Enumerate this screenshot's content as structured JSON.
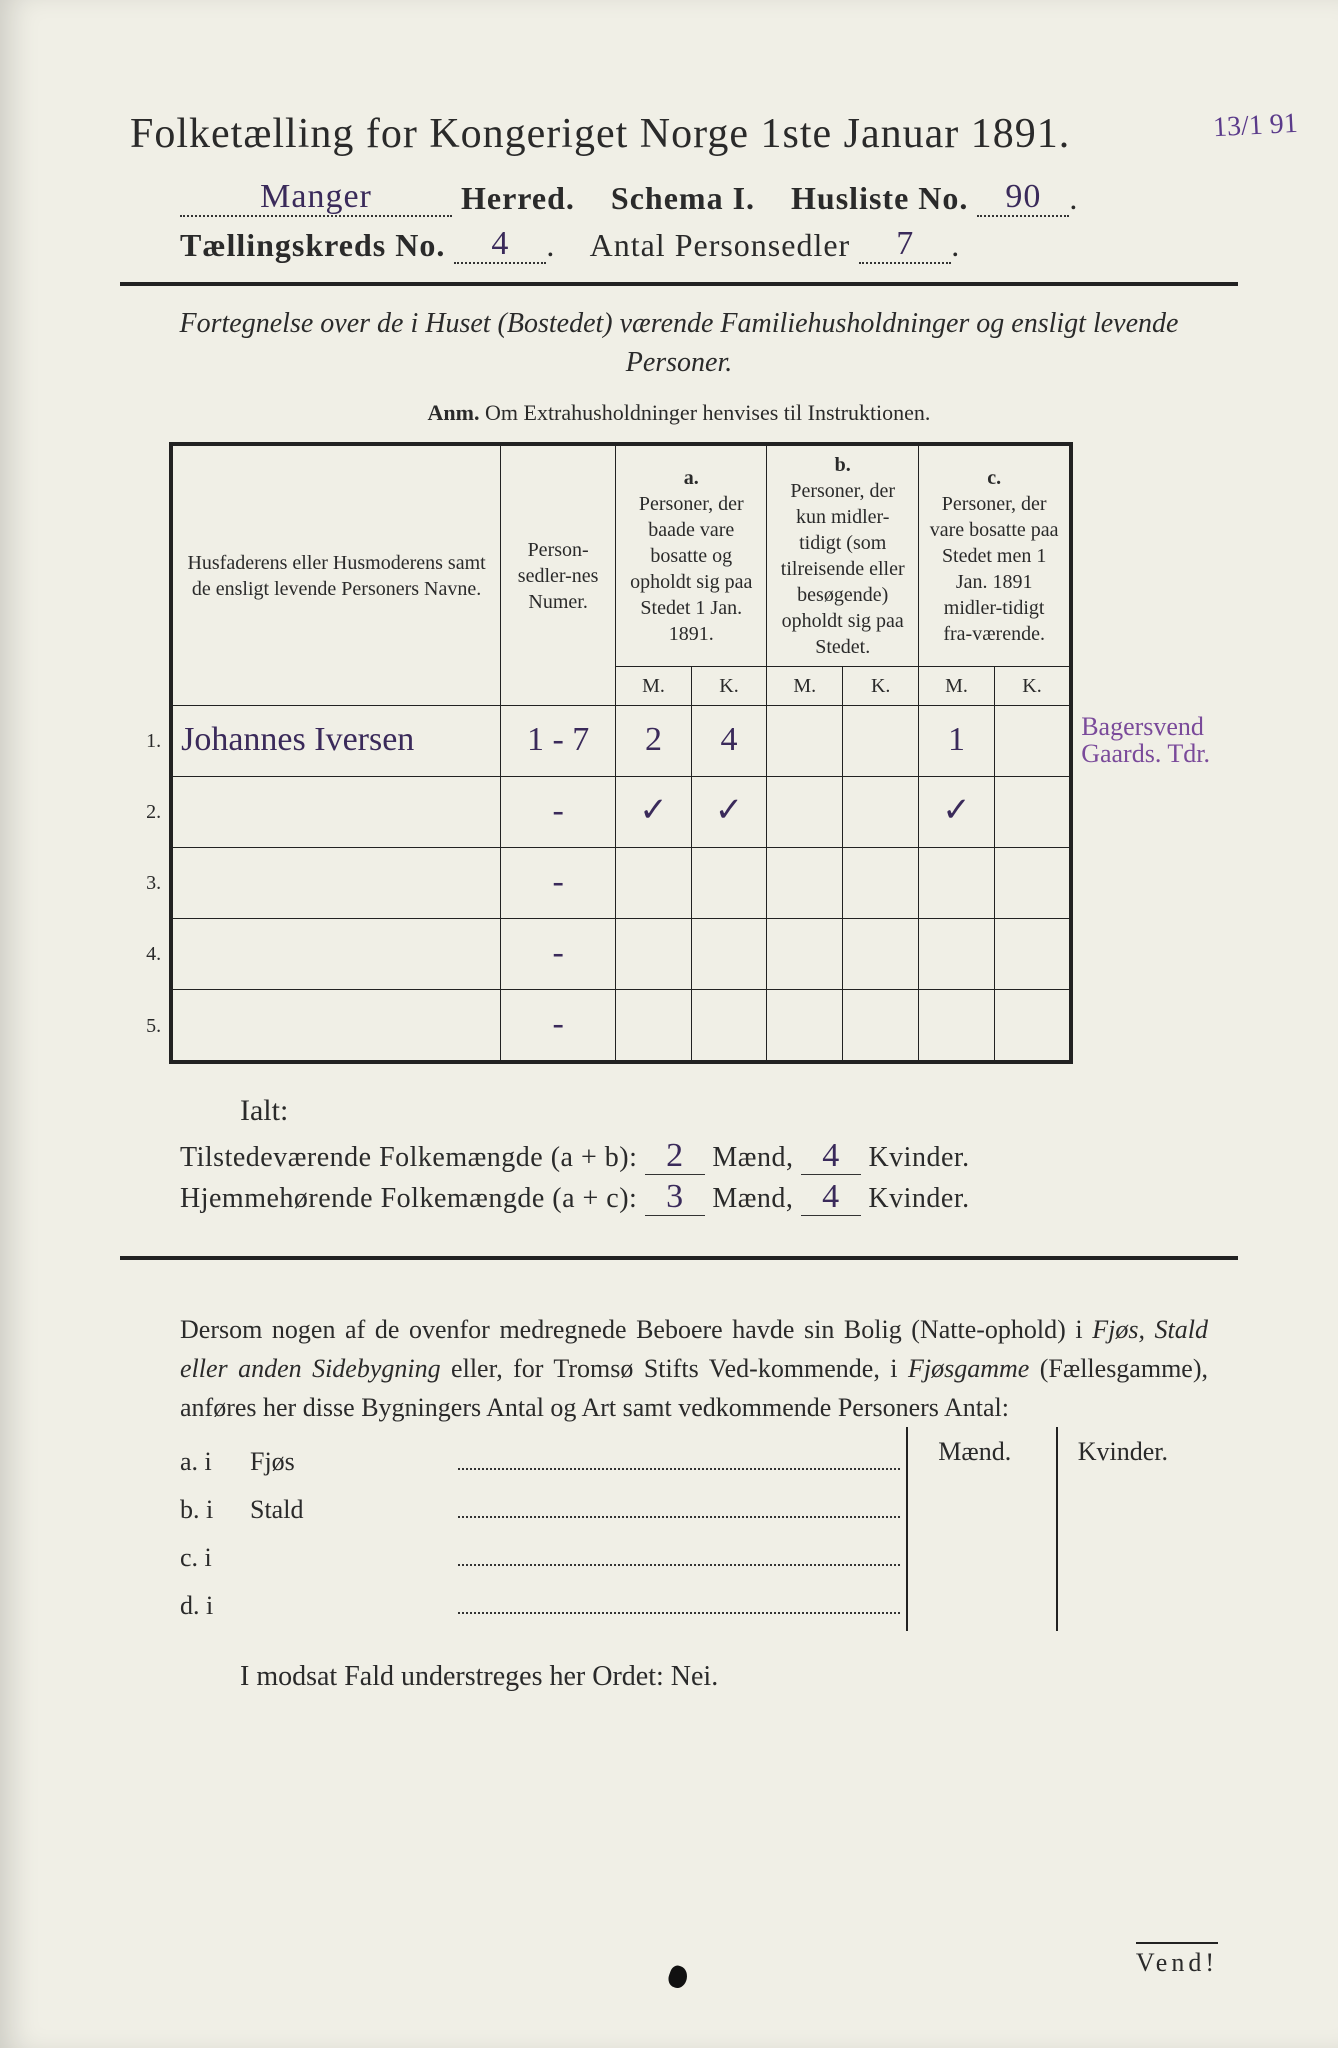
{
  "corner_note": "13/1 91",
  "title": "Folketælling for Kongeriget Norge 1ste Januar 1891.",
  "herred_value": "Manger",
  "herred_label": "Herred.",
  "schema_label": "Schema I.",
  "husliste_label": "Husliste No.",
  "husliste_value": "90",
  "kreds_label": "Tællingskreds No.",
  "kreds_value": "4",
  "antal_label": "Antal Personsedler",
  "antal_value": "7",
  "subtitle": "Fortegnelse over de i Huset (Bostedet) værende Familiehusholdninger og ensligt levende Personer.",
  "anm_label": "Anm.",
  "anm_text": "Om Extrahusholdninger henvises til Instruktionen.",
  "columns": {
    "name": "Husfaderens eller Husmoderens samt de ensligt levende Personers Navne.",
    "numer": "Person-sedler-nes Numer.",
    "a_label": "a.",
    "a_text": "Personer, der baade vare bosatte og opholdt sig paa Stedet 1 Jan. 1891.",
    "b_label": "b.",
    "b_text": "Personer, der kun midler-tidigt (som tilreisende eller besøgende) opholdt sig paa Stedet.",
    "c_label": "c.",
    "c_text": "Personer, der vare bosatte paa Stedet men 1 Jan. 1891 midler-tidigt fra-værende.",
    "M": "M.",
    "K": "K."
  },
  "rows": [
    {
      "n": "1.",
      "name": "Johannes Iversen",
      "numer": "1 - 7",
      "aM": "2",
      "aK": "4",
      "bM": "",
      "bK": "",
      "cM": "1",
      "cK": "",
      "margin1": "Bagersvend",
      "margin2": "Gaards. Tdr."
    },
    {
      "n": "2.",
      "name": "",
      "numer": "-",
      "aM": "✓",
      "aK": "✓",
      "bM": "",
      "bK": "",
      "cM": "✓",
      "cK": "",
      "margin1": "",
      "margin2": ""
    },
    {
      "n": "3.",
      "name": "",
      "numer": "-",
      "aM": "",
      "aK": "",
      "bM": "",
      "bK": "",
      "cM": "",
      "cK": "",
      "margin1": "",
      "margin2": ""
    },
    {
      "n": "4.",
      "name": "",
      "numer": "-",
      "aM": "",
      "aK": "",
      "bM": "",
      "bK": "",
      "cM": "",
      "cK": "",
      "margin1": "",
      "margin2": ""
    },
    {
      "n": "5.",
      "name": "",
      "numer": "-",
      "aM": "",
      "aK": "",
      "bM": "",
      "bK": "",
      "cM": "",
      "cK": "",
      "margin1": "",
      "margin2": ""
    }
  ],
  "ialt": "Ialt:",
  "sum1_label": "Tilstedeværende Folkemængde (a + b):",
  "sum1_m": "2",
  "sum1_k": "4",
  "sum2_label": "Hjemmehørende Folkemængde (a + c):",
  "sum2_m": "3",
  "sum2_k": "4",
  "maend": "Mænd,",
  "kvinder": "Kvinder.",
  "para": "Dersom nogen af de ovenfor medregnede Beboere havde sin Bolig (Natte-ophold) i Fjøs, Stald eller anden Sidebygning eller, for Tromsø Stifts Ved-kommende, i Fjøsgamme (Fællesgamme), anføres her disse Bygningers Antal og Art samt vedkommende Personers Antal:",
  "bldg_head_m": "Mænd.",
  "bldg_head_k": "Kvinder.",
  "bldg": [
    {
      "k": "a.  i",
      "label": "Fjøs"
    },
    {
      "k": "b.  i",
      "label": "Stald"
    },
    {
      "k": "c.  i",
      "label": ""
    },
    {
      "k": "d.  i",
      "label": ""
    }
  ],
  "nei": "I modsat Fald understreges her Ordet: Nei.",
  "vend": "Vend!"
}
